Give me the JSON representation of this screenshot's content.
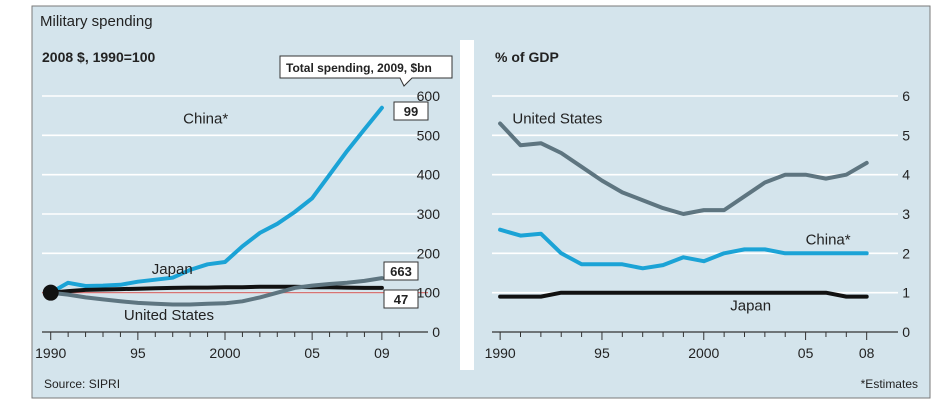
{
  "figure": {
    "title": "Military spending",
    "source": "Source: SIPRI",
    "footnote": "*Estimates"
  },
  "colors": {
    "panel_bg": "#d4e4ec",
    "grid": "#ffffff",
    "tick_text": "#222222",
    "united_states": "#5e7580",
    "china": "#1ba3d6",
    "japan": "#111111",
    "baseline": "#d06060"
  },
  "chart_data": [
    {
      "type": "line",
      "panel": "left",
      "subtitle": "2008 $, 1990=100",
      "callout": "Total spending, 2009, $bn",
      "x": [
        1990,
        1991,
        1992,
        1993,
        1994,
        1995,
        1996,
        1997,
        1998,
        1999,
        2000,
        2001,
        2002,
        2003,
        2004,
        2005,
        2006,
        2007,
        2008,
        2009
      ],
      "xlim": [
        1989.5,
        2010.5
      ],
      "ylim": [
        0,
        600
      ],
      "ytick_values": [
        0,
        100,
        200,
        300,
        400,
        500,
        600
      ],
      "ytick_labels": [
        "0",
        "100",
        "200",
        "300",
        "400",
        "500",
        "600"
      ],
      "xtick_values": [
        1990,
        1995,
        2000,
        2005,
        2009
      ],
      "xtick_labels": [
        "1990",
        "95",
        "2000",
        "05",
        "09"
      ],
      "series": [
        {
          "name": "China*",
          "key": "china",
          "color": "#1ba3d6",
          "label_x": 1997.6,
          "label_y": 530,
          "values": [
            100,
            125,
            117,
            118,
            120,
            128,
            133,
            138,
            158,
            172,
            178,
            218,
            252,
            275,
            305,
            340,
            400,
            460,
            515,
            570
          ],
          "end_label": "99"
        },
        {
          "name": "Japan",
          "key": "japan",
          "color": "#111111",
          "label_x": 1995.8,
          "label_y": 148,
          "values": [
            100,
            104,
            107,
            108,
            109,
            110,
            111,
            112,
            113,
            113,
            114,
            114,
            115,
            115,
            115,
            114,
            114,
            113,
            112,
            112
          ],
          "end_label": "47"
        },
        {
          "name": "United States",
          "key": "united_states",
          "color": "#5e7580",
          "label_x": 1994.2,
          "label_y": 30,
          "values": [
            100,
            95,
            88,
            83,
            78,
            74,
            72,
            70,
            70,
            72,
            73,
            78,
            88,
            100,
            112,
            118,
            122,
            125,
            130,
            137
          ],
          "end_label": "663"
        }
      ]
    },
    {
      "type": "line",
      "panel": "right",
      "subtitle": "% of GDP",
      "x": [
        1990,
        1991,
        1992,
        1993,
        1994,
        1995,
        1996,
        1997,
        1998,
        1999,
        2000,
        2001,
        2002,
        2003,
        2004,
        2005,
        2006,
        2007,
        2008
      ],
      "xlim": [
        1989.6,
        2008.9
      ],
      "ylim": [
        0,
        6
      ],
      "ytick_values": [
        0,
        1,
        2,
        3,
        4,
        5,
        6
      ],
      "ytick_labels": [
        "0",
        "1",
        "2",
        "3",
        "4",
        "5",
        "6"
      ],
      "xtick_values": [
        1990,
        1995,
        2000,
        2005,
        2008
      ],
      "xtick_labels": [
        "1990",
        "95",
        "2000",
        "05",
        "08"
      ],
      "series": [
        {
          "name": "United States",
          "key": "united_states",
          "color": "#5e7580",
          "label_x": 1990.6,
          "label_y": 5.3,
          "values": [
            5.3,
            4.75,
            4.8,
            4.55,
            4.2,
            3.85,
            3.55,
            3.35,
            3.15,
            3.0,
            3.1,
            3.1,
            3.45,
            3.8,
            4.0,
            4.0,
            3.9,
            4.0,
            4.3
          ]
        },
        {
          "name": "China*",
          "key": "china",
          "color": "#1ba3d6",
          "label_x": 2005.0,
          "label_y": 2.22,
          "values": [
            2.6,
            2.45,
            2.5,
            2.0,
            1.72,
            1.72,
            1.72,
            1.62,
            1.7,
            1.9,
            1.8,
            2.0,
            2.1,
            2.1,
            2.0,
            2.0,
            2.0,
            2.0,
            2.0
          ]
        },
        {
          "name": "Japan",
          "key": "japan",
          "color": "#111111",
          "label_x": 2001.3,
          "label_y": 0.55,
          "values": [
            0.9,
            0.9,
            0.9,
            1.0,
            1.0,
            1.0,
            1.0,
            1.0,
            1.0,
            1.0,
            1.0,
            1.0,
            1.0,
            1.0,
            1.0,
            1.0,
            1.0,
            0.9,
            0.9
          ]
        }
      ]
    }
  ]
}
